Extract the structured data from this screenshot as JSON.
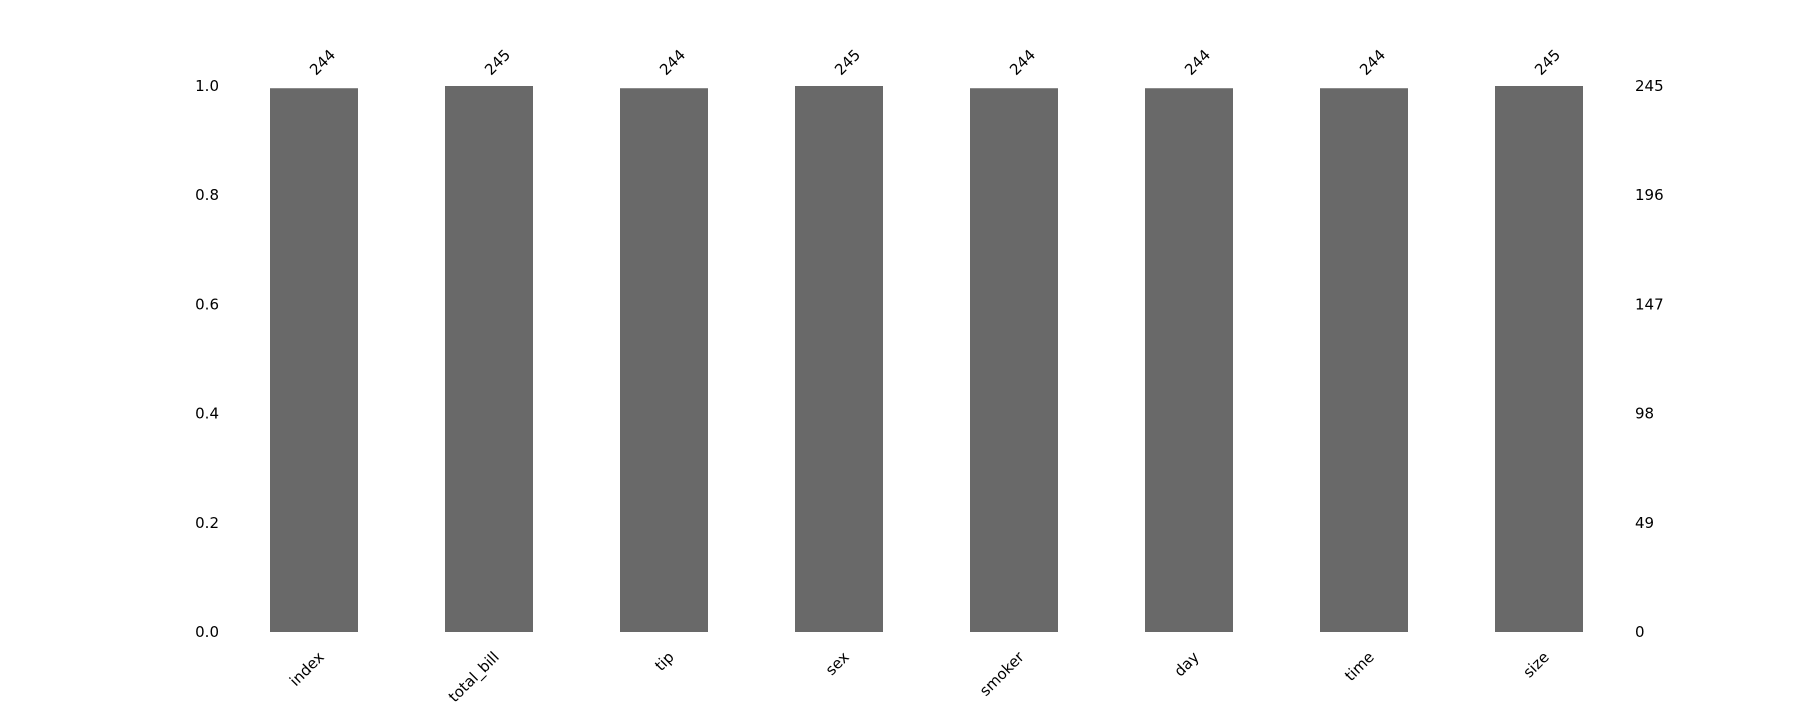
{
  "chart_data": {
    "type": "bar",
    "categories": [
      "index",
      "total_bill",
      "tip",
      "sex",
      "smoker",
      "day",
      "time",
      "size"
    ],
    "values": [
      244,
      245,
      244,
      245,
      244,
      244,
      244,
      245
    ],
    "total": 245,
    "left_axis": {
      "ylim": [
        0.0,
        1.0
      ],
      "ticks": [
        "0.0",
        "0.2",
        "0.4",
        "0.6",
        "0.8",
        "1.0"
      ]
    },
    "right_axis": {
      "ylim": [
        0,
        245
      ],
      "ticks": [
        "0",
        "49",
        "98",
        "147",
        "196",
        "245"
      ]
    },
    "bar_color": "#696969",
    "grid": false,
    "legend": "none",
    "title": "",
    "xlabel": "",
    "ylabel": ""
  }
}
